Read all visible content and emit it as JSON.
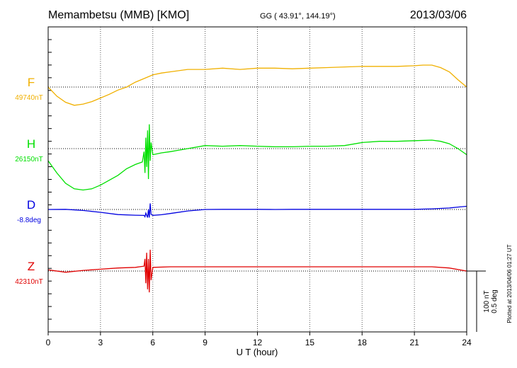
{
  "header": {
    "station": "Memambetsu (MMB)  [KMO]",
    "coords": "GG ( 43.91°, 144.19°)",
    "date": "2013/03/06"
  },
  "plotted_note": "Plotted at 2013/04/06 01:27 UT",
  "chart_data": {
    "type": "line",
    "xlabel": "U T (hour)",
    "xlim": [
      0,
      24
    ],
    "xticks": [
      0,
      3,
      6,
      9,
      12,
      15,
      18,
      21,
      24
    ],
    "grid": true,
    "scale_bar": {
      "nt_label": "100 nT",
      "deg_label": "0.5 deg",
      "nt": 100,
      "deg": 0.5
    },
    "series": [
      {
        "name": "F",
        "baseline_label": "49740nT",
        "baseline": 49740,
        "unit": "nT",
        "color": "#f0b000",
        "points": [
          [
            0,
            49740
          ],
          [
            0.5,
            49725
          ],
          [
            1,
            49715
          ],
          [
            1.5,
            49710
          ],
          [
            2,
            49712
          ],
          [
            2.5,
            49716
          ],
          [
            3,
            49722
          ],
          [
            3.5,
            49728
          ],
          [
            4,
            49735
          ],
          [
            4.5,
            49740
          ],
          [
            5,
            49748
          ],
          [
            5.5,
            49754
          ],
          [
            6,
            49760
          ],
          [
            6.5,
            49763
          ],
          [
            7,
            49765
          ],
          [
            8,
            49769
          ],
          [
            9,
            49769
          ],
          [
            10,
            49771
          ],
          [
            11,
            49769
          ],
          [
            12,
            49771
          ],
          [
            13,
            49771
          ],
          [
            14,
            49770
          ],
          [
            15,
            49771
          ],
          [
            16,
            49772
          ],
          [
            17,
            49773
          ],
          [
            18,
            49774
          ],
          [
            19,
            49774
          ],
          [
            20,
            49774
          ],
          [
            21,
            49775
          ],
          [
            21.5,
            49776
          ],
          [
            22,
            49776
          ],
          [
            22.5,
            49772
          ],
          [
            23,
            49765
          ],
          [
            23.5,
            49752
          ],
          [
            24,
            49740
          ]
        ]
      },
      {
        "name": "H",
        "baseline_label": "26150nT",
        "baseline": 26150,
        "unit": "nT",
        "color": "#00e000",
        "points": [
          [
            0,
            26130
          ],
          [
            0.5,
            26110
          ],
          [
            1,
            26093
          ],
          [
            1.5,
            26084
          ],
          [
            2,
            26082
          ],
          [
            2.5,
            26084
          ],
          [
            3,
            26090
          ],
          [
            3.5,
            26098
          ],
          [
            4,
            26106
          ],
          [
            4.5,
            26117
          ],
          [
            5,
            26124
          ],
          [
            5.4,
            26128
          ],
          [
            5.5,
            26145
          ],
          [
            5.55,
            26110
          ],
          [
            5.6,
            26168
          ],
          [
            5.65,
            26120
          ],
          [
            5.7,
            26180
          ],
          [
            5.75,
            26100
          ],
          [
            5.8,
            26190
          ],
          [
            5.85,
            26130
          ],
          [
            5.9,
            26160
          ],
          [
            6,
            26140
          ],
          [
            6.5,
            26143
          ],
          [
            7,
            26145
          ],
          [
            8,
            26150
          ],
          [
            9,
            26155
          ],
          [
            10,
            26154
          ],
          [
            11,
            26155
          ],
          [
            12,
            26154
          ],
          [
            13,
            26153
          ],
          [
            14,
            26153
          ],
          [
            15,
            26154
          ],
          [
            16,
            26154
          ],
          [
            17,
            26155
          ],
          [
            18,
            26160
          ],
          [
            19,
            26162
          ],
          [
            20,
            26162
          ],
          [
            21,
            26163
          ],
          [
            22,
            26164
          ],
          [
            22.5,
            26162
          ],
          [
            23,
            26158
          ],
          [
            23.5,
            26150
          ],
          [
            24,
            26140
          ]
        ]
      },
      {
        "name": "D",
        "baseline_label": "-8.8deg",
        "baseline": -8.8,
        "unit": "deg",
        "color": "#0000e0",
        "points": [
          [
            0,
            -8.8
          ],
          [
            1,
            -8.799
          ],
          [
            2,
            -8.808
          ],
          [
            3,
            -8.823
          ],
          [
            4,
            -8.842
          ],
          [
            5,
            -8.847
          ],
          [
            5.5,
            -8.849
          ],
          [
            5.55,
            -8.86
          ],
          [
            5.6,
            -8.83
          ],
          [
            5.7,
            -8.866
          ],
          [
            5.75,
            -8.8
          ],
          [
            5.8,
            -8.866
          ],
          [
            5.85,
            -8.75
          ],
          [
            5.9,
            -8.84
          ],
          [
            6,
            -8.848
          ],
          [
            6.5,
            -8.843
          ],
          [
            7,
            -8.833
          ],
          [
            8,
            -8.812
          ],
          [
            9,
            -8.8
          ],
          [
            10,
            -8.799
          ],
          [
            11,
            -8.799
          ],
          [
            12,
            -8.799
          ],
          [
            13,
            -8.8
          ],
          [
            14,
            -8.799
          ],
          [
            15,
            -8.799
          ],
          [
            16,
            -8.799
          ],
          [
            17,
            -8.799
          ],
          [
            18,
            -8.799
          ],
          [
            19,
            -8.799
          ],
          [
            20,
            -8.799
          ],
          [
            21,
            -8.799
          ],
          [
            22,
            -8.795
          ],
          [
            23,
            -8.788
          ],
          [
            23.5,
            -8.78
          ],
          [
            24,
            -8.774
          ]
        ]
      },
      {
        "name": "Z",
        "baseline_label": "42310nT",
        "baseline": 42310,
        "unit": "nT",
        "color": "#e00000",
        "points": [
          [
            0,
            42312
          ],
          [
            1,
            42308
          ],
          [
            2,
            42311
          ],
          [
            3,
            42313
          ],
          [
            4,
            42315
          ],
          [
            5,
            42316
          ],
          [
            5.5,
            42318
          ],
          [
            5.55,
            42330
          ],
          [
            5.6,
            42290
          ],
          [
            5.65,
            42340
          ],
          [
            5.7,
            42280
          ],
          [
            5.75,
            42330
          ],
          [
            5.8,
            42275
          ],
          [
            5.85,
            42345
          ],
          [
            5.9,
            42295
          ],
          [
            6,
            42316
          ],
          [
            7,
            42317
          ],
          [
            8,
            42317
          ],
          [
            9,
            42317
          ],
          [
            10,
            42317
          ],
          [
            12,
            42317
          ],
          [
            14,
            42317
          ],
          [
            16,
            42317
          ],
          [
            18,
            42317
          ],
          [
            20,
            42317
          ],
          [
            22,
            42317
          ],
          [
            23,
            42315
          ],
          [
            24,
            42310
          ]
        ]
      }
    ]
  }
}
